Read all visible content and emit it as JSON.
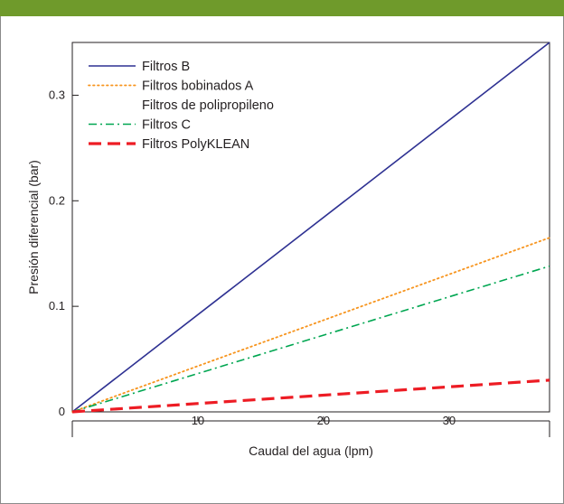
{
  "header": {
    "title": ""
  },
  "chart_data": {
    "type": "line",
    "xlabel": "Caudal del agua (lpm)",
    "ylabel": "Presión diferencial  (bar)",
    "xlim": [
      0,
      38
    ],
    "ylim": [
      0,
      0.35
    ],
    "xticks": [
      10,
      20,
      30
    ],
    "xtick_labels": [
      "10",
      "20",
      "30"
    ],
    "yticks": [
      0,
      0.1,
      0.2,
      0.3
    ],
    "ytick_labels": [
      "0",
      "0.1",
      "0.2",
      "0.3"
    ],
    "grid": false,
    "legend_position": "top-left",
    "series": [
      {
        "name": "Filtros B",
        "color": "#2e3192",
        "dash": "solid",
        "x": [
          0,
          38
        ],
        "y": [
          0,
          0.35
        ]
      },
      {
        "name": "Filtros bobinados A",
        "color": "#f7941d",
        "dash": "dotted",
        "x": [
          0,
          38
        ],
        "y": [
          0,
          0.165
        ]
      },
      {
        "name": "Filtros de polipropileno",
        "color": "",
        "dash": "none",
        "x": [],
        "y": []
      },
      {
        "name": "Filtros C",
        "color": "#00a651",
        "dash": "dashdot",
        "x": [
          0,
          38
        ],
        "y": [
          0,
          0.138
        ]
      },
      {
        "name": "Filtros PolyKLEAN",
        "color": "#ed1c24",
        "dash": "dashed",
        "x": [
          0,
          38
        ],
        "y": [
          0,
          0.03
        ]
      }
    ]
  }
}
